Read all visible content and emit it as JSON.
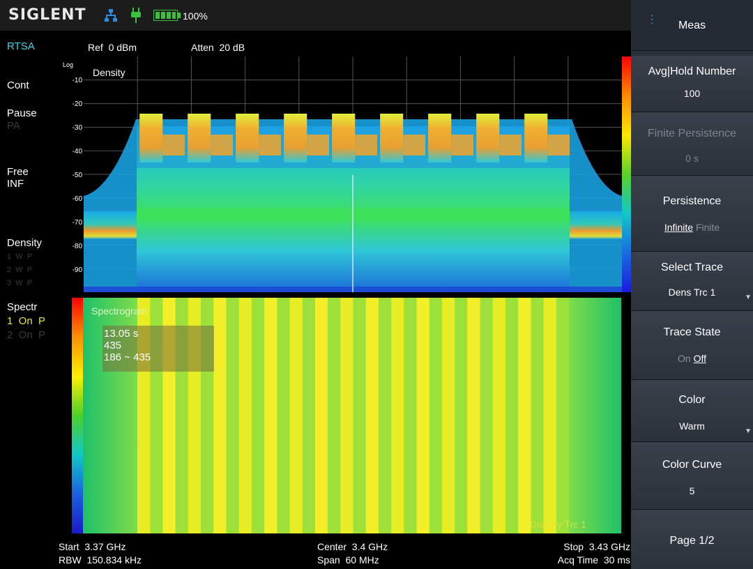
{
  "brand": "SIGLENT",
  "battery_text": "100%",
  "mode": "RTSA",
  "ref_label": "Ref  0 dBm",
  "atten_label": "Atten  20 dB",
  "left": {
    "cont": "Cont",
    "pause": "Pause",
    "pa": "PA",
    "free": "Free",
    "inf": "INF",
    "density": "Density",
    "traces": [
      "1  W  P",
      "2  W  P",
      "3  W  P"
    ],
    "spectr": "Spectr",
    "spec_trace1": "1  On  P",
    "spec_trace2": "2  On  P"
  },
  "density_panel": {
    "title": "Density",
    "scale": "Log",
    "ticks": [
      "-10",
      "-20",
      "-30",
      "-40",
      "-50",
      "-60",
      "-70",
      "-80",
      "-90"
    ]
  },
  "spectrogram": {
    "title": "Spectrogram",
    "marker_time": "13.05 s",
    "marker_index": "435",
    "marker_range": "186 ~ 435",
    "trace_label": "Display Trc 1"
  },
  "bottom": {
    "start": "Start  3.37 GHz",
    "rbw": "RBW  150.834 kHz",
    "center": "Center  3.4 GHz",
    "span": "Span  60 MHz",
    "stop": "Stop  3.43 GHz",
    "acq": "Acq Time  30 ms"
  },
  "softkeys": {
    "header": "Meas",
    "avg_label": "Avg|Hold Number",
    "avg_value": "100",
    "finite_label": "Finite Persistence",
    "finite_value": "0 s",
    "persistence_label": "Persistence",
    "persistence_opt1": "Infinite",
    "persistence_opt2": "Finite",
    "select_trace_label": "Select Trace",
    "select_trace_value": "Dens Trc 1",
    "trace_state_label": "Trace State",
    "trace_state_on": "On",
    "trace_state_off": "Off",
    "color_label": "Color",
    "color_value": "Warm",
    "color_curve_label": "Color Curve",
    "color_curve_value": "5",
    "page_label": "Page 1/2"
  },
  "icons": [
    "lan-icon",
    "plug-icon",
    "battery-icon"
  ]
}
